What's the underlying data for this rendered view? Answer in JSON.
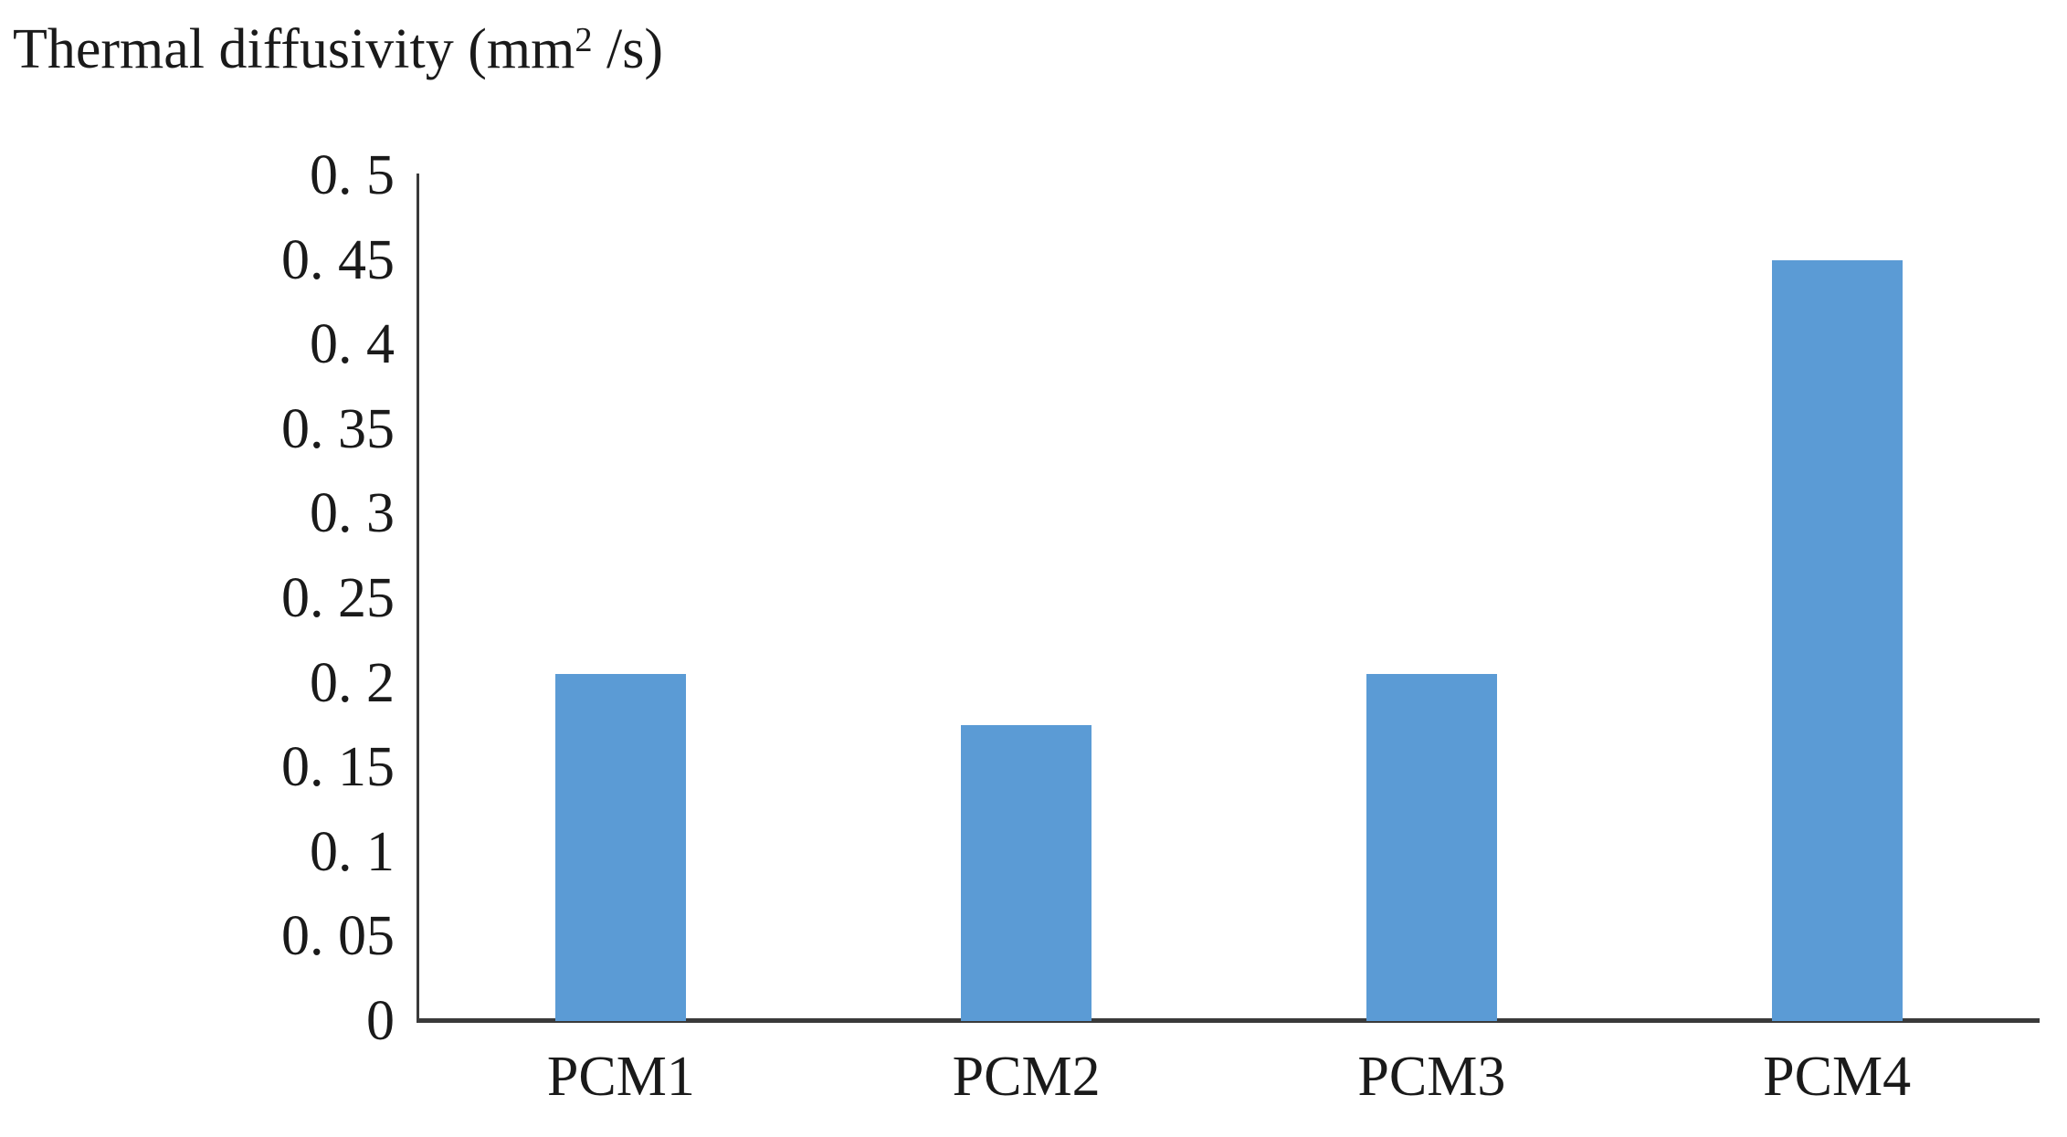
{
  "chart_data": {
    "type": "bar",
    "title": "Thermal diffusivity (mm² /s)",
    "title_prefix": "Thermal diffusivity (mm",
    "title_sup": "2",
    "title_suffix": " /s)",
    "categories": [
      "PCM1",
      "PCM2",
      "PCM3",
      "PCM4"
    ],
    "values": [
      0.205,
      0.175,
      0.205,
      0.45
    ],
    "xlabel": "",
    "ylabel": "Thermal diffusivity (mm² /s)",
    "ylim": [
      0,
      0.5
    ],
    "ytick_step": 0.05,
    "yticks": [
      {
        "value": 0.5,
        "label": "0. 5"
      },
      {
        "value": 0.45,
        "label": "0. 45"
      },
      {
        "value": 0.4,
        "label": "0. 4"
      },
      {
        "value": 0.35,
        "label": "0. 35"
      },
      {
        "value": 0.3,
        "label": "0. 3"
      },
      {
        "value": 0.25,
        "label": "0. 25"
      },
      {
        "value": 0.2,
        "label": "0. 2"
      },
      {
        "value": 0.15,
        "label": "0. 15"
      },
      {
        "value": 0.1,
        "label": "0. 1"
      },
      {
        "value": 0.05,
        "label": "0. 05"
      },
      {
        "value": 0,
        "label": "0"
      }
    ],
    "grid": false,
    "legend": false,
    "bar_color": "#5B9BD5",
    "axis_color": "#3a3a3a",
    "text_color": "#1a1a1a",
    "background_color": "#ffffff"
  }
}
